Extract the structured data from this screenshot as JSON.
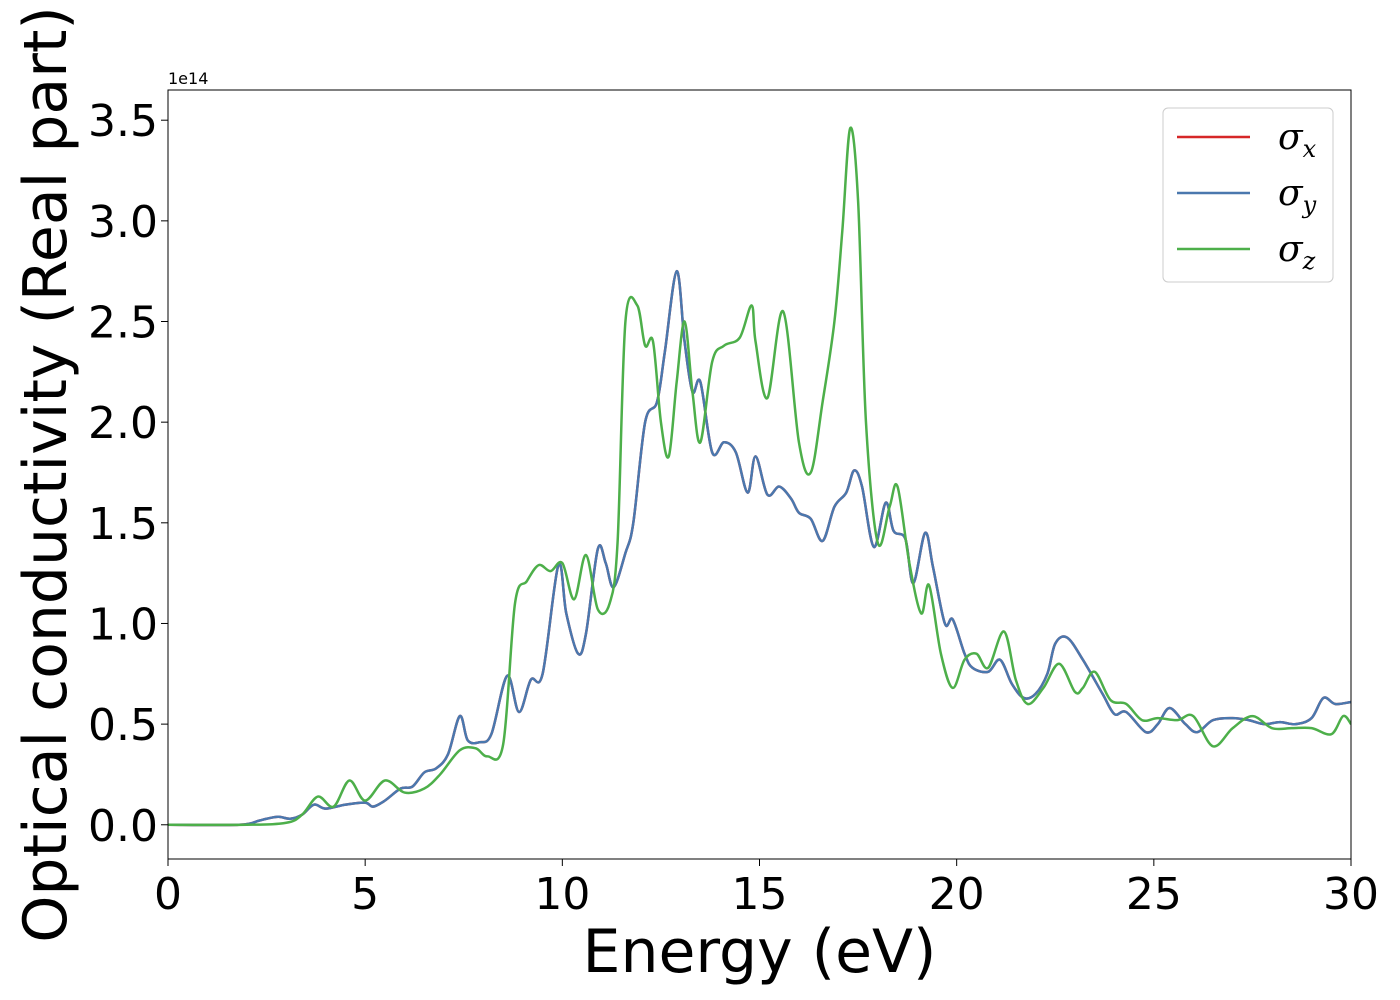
{
  "chart_data": {
    "type": "line",
    "title": "",
    "xlabel": "Energy (eV)",
    "ylabel": "Optical conductivity (Real part)",
    "y_offset_label": "1e14",
    "y_scale_factor": 100000000000000.0,
    "xlim": [
      0,
      30
    ],
    "ylim": [
      -0.17,
      3.65
    ],
    "xticks": [
      0,
      5,
      10,
      15,
      20,
      25,
      30
    ],
    "xtick_labels": [
      "0",
      "5",
      "10",
      "15",
      "20",
      "25",
      "30"
    ],
    "yticks": [
      0.0,
      0.5,
      1.0,
      1.5,
      2.0,
      2.5,
      3.0,
      3.5
    ],
    "ytick_labels": [
      "0.0",
      "0.5",
      "1.0",
      "1.5",
      "2.0",
      "2.5",
      "3.0",
      "3.5"
    ],
    "grid": false,
    "legend_position": "top-right",
    "series": [
      {
        "name": "σx",
        "symbol": "σ",
        "subscript": "x",
        "color": "#d62728",
        "x": [
          0,
          1.8,
          2.3,
          2.5,
          2.8,
          3.1,
          3.4,
          3.7,
          4.0,
          4.5,
          5.0,
          5.2,
          5.5,
          5.9,
          6.2,
          6.5,
          6.8,
          7.1,
          7.4,
          7.6,
          7.9,
          8.2,
          8.6,
          8.9,
          9.2,
          9.5,
          9.9,
          10.1,
          10.4,
          10.6,
          10.9,
          11.1,
          11.3,
          11.6,
          11.8,
          12.1,
          12.4,
          12.6,
          12.9,
          13.1,
          13.3,
          13.5,
          13.8,
          14.1,
          14.4,
          14.7,
          14.9,
          15.2,
          15.5,
          15.8,
          16.0,
          16.3,
          16.6,
          16.9,
          17.2,
          17.4,
          17.6,
          17.9,
          18.2,
          18.4,
          18.7,
          18.9,
          19.2,
          19.4,
          19.7,
          19.9,
          20.2,
          20.4,
          20.8,
          21.1,
          21.4,
          21.7,
          22.0,
          22.3,
          22.5,
          22.8,
          23.2,
          23.7,
          24.0,
          24.3,
          24.8,
          25.1,
          25.4,
          25.8,
          26.1,
          26.5,
          27.0,
          27.4,
          27.8,
          28.2,
          28.6,
          29.0,
          29.3,
          29.6,
          30.0
        ],
        "y": [
          0.0,
          0.0,
          0.02,
          0.03,
          0.04,
          0.03,
          0.05,
          0.1,
          0.08,
          0.1,
          0.11,
          0.09,
          0.12,
          0.18,
          0.19,
          0.26,
          0.28,
          0.35,
          0.54,
          0.42,
          0.41,
          0.45,
          0.74,
          0.56,
          0.72,
          0.75,
          1.29,
          1.05,
          0.85,
          0.95,
          1.37,
          1.3,
          1.18,
          1.35,
          1.5,
          2.0,
          2.1,
          2.35,
          2.75,
          2.4,
          2.15,
          2.2,
          1.85,
          1.9,
          1.85,
          1.65,
          1.83,
          1.64,
          1.68,
          1.62,
          1.55,
          1.52,
          1.41,
          1.58,
          1.65,
          1.76,
          1.68,
          1.38,
          1.6,
          1.46,
          1.42,
          1.2,
          1.45,
          1.28,
          1.0,
          1.02,
          0.85,
          0.78,
          0.76,
          0.82,
          0.7,
          0.63,
          0.65,
          0.75,
          0.9,
          0.93,
          0.82,
          0.65,
          0.55,
          0.56,
          0.46,
          0.5,
          0.58,
          0.5,
          0.46,
          0.52,
          0.53,
          0.52,
          0.5,
          0.51,
          0.5,
          0.53,
          0.63,
          0.6,
          0.61
        ]
      },
      {
        "name": "σy",
        "symbol": "σ",
        "subscript": "y",
        "color": "#4a78ae",
        "x": [
          0,
          1.8,
          2.3,
          2.5,
          2.8,
          3.1,
          3.4,
          3.7,
          4.0,
          4.5,
          5.0,
          5.2,
          5.5,
          5.9,
          6.2,
          6.5,
          6.8,
          7.1,
          7.4,
          7.6,
          7.9,
          8.2,
          8.6,
          8.9,
          9.2,
          9.5,
          9.9,
          10.1,
          10.4,
          10.6,
          10.9,
          11.1,
          11.3,
          11.6,
          11.8,
          12.1,
          12.4,
          12.6,
          12.9,
          13.1,
          13.3,
          13.5,
          13.8,
          14.1,
          14.4,
          14.7,
          14.9,
          15.2,
          15.5,
          15.8,
          16.0,
          16.3,
          16.6,
          16.9,
          17.2,
          17.4,
          17.6,
          17.9,
          18.2,
          18.4,
          18.7,
          18.9,
          19.2,
          19.4,
          19.7,
          19.9,
          20.2,
          20.4,
          20.8,
          21.1,
          21.4,
          21.7,
          22.0,
          22.3,
          22.5,
          22.8,
          23.2,
          23.7,
          24.0,
          24.3,
          24.8,
          25.1,
          25.4,
          25.8,
          26.1,
          26.5,
          27.0,
          27.4,
          27.8,
          28.2,
          28.6,
          29.0,
          29.3,
          29.6,
          30.0
        ],
        "y": [
          0.0,
          0.0,
          0.02,
          0.03,
          0.04,
          0.03,
          0.05,
          0.1,
          0.08,
          0.1,
          0.11,
          0.09,
          0.12,
          0.18,
          0.19,
          0.26,
          0.28,
          0.35,
          0.54,
          0.42,
          0.41,
          0.45,
          0.74,
          0.56,
          0.72,
          0.75,
          1.29,
          1.05,
          0.85,
          0.95,
          1.37,
          1.3,
          1.18,
          1.35,
          1.5,
          2.0,
          2.1,
          2.35,
          2.75,
          2.4,
          2.15,
          2.2,
          1.85,
          1.9,
          1.85,
          1.65,
          1.83,
          1.64,
          1.68,
          1.62,
          1.55,
          1.52,
          1.41,
          1.58,
          1.65,
          1.76,
          1.68,
          1.38,
          1.6,
          1.46,
          1.42,
          1.2,
          1.45,
          1.28,
          1.0,
          1.02,
          0.85,
          0.78,
          0.76,
          0.82,
          0.7,
          0.63,
          0.65,
          0.75,
          0.9,
          0.93,
          0.82,
          0.65,
          0.55,
          0.56,
          0.46,
          0.5,
          0.58,
          0.5,
          0.46,
          0.52,
          0.53,
          0.52,
          0.5,
          0.51,
          0.5,
          0.53,
          0.63,
          0.6,
          0.61
        ]
      },
      {
        "name": "σz",
        "symbol": "σ",
        "subscript": "z",
        "color": "#4daf4a",
        "x": [
          0,
          2.0,
          3.0,
          3.4,
          3.8,
          4.2,
          4.6,
          5.0,
          5.5,
          6.0,
          6.5,
          6.9,
          7.4,
          7.8,
          8.1,
          8.5,
          8.8,
          9.1,
          9.4,
          9.7,
          10.0,
          10.3,
          10.6,
          10.9,
          11.2,
          11.4,
          11.6,
          11.9,
          12.1,
          12.3,
          12.5,
          12.7,
          12.9,
          13.1,
          13.3,
          13.5,
          13.8,
          14.1,
          14.5,
          14.8,
          14.9,
          15.2,
          15.6,
          16.0,
          16.3,
          16.6,
          16.9,
          17.1,
          17.3,
          17.5,
          17.7,
          18.0,
          18.3,
          18.5,
          18.8,
          19.1,
          19.3,
          19.6,
          19.9,
          20.2,
          20.5,
          20.8,
          21.2,
          21.5,
          21.8,
          22.2,
          22.6,
          23.0,
          23.2,
          23.5,
          23.9,
          24.3,
          24.7,
          25.1,
          25.6,
          26.0,
          26.5,
          27.0,
          27.5,
          28.0,
          28.5,
          29.0,
          29.5,
          29.8,
          30.0
        ],
        "y": [
          0.0,
          0.0,
          0.01,
          0.05,
          0.14,
          0.09,
          0.22,
          0.12,
          0.22,
          0.16,
          0.18,
          0.25,
          0.37,
          0.38,
          0.34,
          0.4,
          1.1,
          1.21,
          1.29,
          1.26,
          1.3,
          1.12,
          1.34,
          1.07,
          1.1,
          1.4,
          2.5,
          2.58,
          2.38,
          2.4,
          2.0,
          1.83,
          2.2,
          2.5,
          2.15,
          1.9,
          2.3,
          2.38,
          2.42,
          2.58,
          2.4,
          2.12,
          2.55,
          1.9,
          1.75,
          2.1,
          2.5,
          2.95,
          3.46,
          3.1,
          2.0,
          1.4,
          1.58,
          1.68,
          1.3,
          1.05,
          1.19,
          0.85,
          0.68,
          0.82,
          0.85,
          0.78,
          0.96,
          0.72,
          0.6,
          0.68,
          0.8,
          0.66,
          0.68,
          0.76,
          0.62,
          0.6,
          0.52,
          0.53,
          0.52,
          0.54,
          0.39,
          0.48,
          0.54,
          0.48,
          0.48,
          0.48,
          0.45,
          0.54,
          0.5
        ]
      }
    ]
  }
}
